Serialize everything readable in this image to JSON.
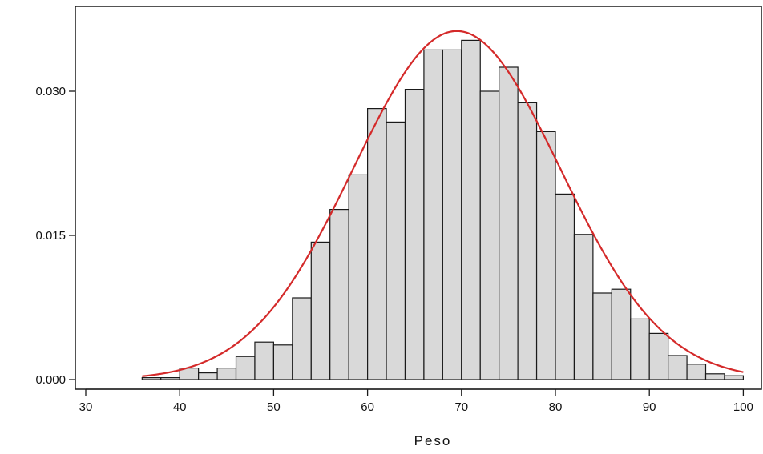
{
  "chart_data": {
    "type": "bar",
    "subtype": "histogram",
    "title": "",
    "xlabel": "Peso",
    "ylabel": "",
    "xlim": [
      30,
      100
    ],
    "ylim": [
      0.0,
      0.0375
    ],
    "x_ticks": [
      "30",
      "40",
      "50",
      "60",
      "70",
      "80",
      "90",
      "100"
    ],
    "y_ticks": [
      "0.000",
      "0.015",
      "0.030"
    ],
    "bin_width": 2,
    "bins": [
      {
        "from": 36,
        "to": 38,
        "value": 0.0002
      },
      {
        "from": 38,
        "to": 40,
        "value": 0.0002
      },
      {
        "from": 40,
        "to": 42,
        "value": 0.0012
      },
      {
        "from": 42,
        "to": 44,
        "value": 0.0007
      },
      {
        "from": 44,
        "to": 46,
        "value": 0.0012
      },
      {
        "from": 46,
        "to": 48,
        "value": 0.0024
      },
      {
        "from": 48,
        "to": 50,
        "value": 0.0039
      },
      {
        "from": 50,
        "to": 52,
        "value": 0.0036
      },
      {
        "from": 52,
        "to": 54,
        "value": 0.0085
      },
      {
        "from": 54,
        "to": 56,
        "value": 0.0143
      },
      {
        "from": 56,
        "to": 58,
        "value": 0.0177
      },
      {
        "from": 58,
        "to": 60,
        "value": 0.0213
      },
      {
        "from": 60,
        "to": 62,
        "value": 0.0282
      },
      {
        "from": 62,
        "to": 64,
        "value": 0.0268
      },
      {
        "from": 64,
        "to": 66,
        "value": 0.0302
      },
      {
        "from": 66,
        "to": 68,
        "value": 0.0343
      },
      {
        "from": 68,
        "to": 70,
        "value": 0.0343
      },
      {
        "from": 70,
        "to": 72,
        "value": 0.0353
      },
      {
        "from": 72,
        "to": 74,
        "value": 0.03
      },
      {
        "from": 74,
        "to": 76,
        "value": 0.0325
      },
      {
        "from": 76,
        "to": 78,
        "value": 0.0288
      },
      {
        "from": 78,
        "to": 80,
        "value": 0.0258
      },
      {
        "from": 80,
        "to": 82,
        "value": 0.0193
      },
      {
        "from": 82,
        "to": 84,
        "value": 0.0151
      },
      {
        "from": 84,
        "to": 86,
        "value": 0.009
      },
      {
        "from": 86,
        "to": 88,
        "value": 0.0094
      },
      {
        "from": 88,
        "to": 90,
        "value": 0.0063
      },
      {
        "from": 90,
        "to": 92,
        "value": 0.0048
      },
      {
        "from": 92,
        "to": 94,
        "value": 0.0025
      },
      {
        "from": 94,
        "to": 96,
        "value": 0.0016
      },
      {
        "from": 96,
        "to": 98,
        "value": 0.0006
      },
      {
        "from": 98,
        "to": 100,
        "value": 0.0004
      }
    ],
    "density_curve": {
      "type": "normal",
      "mean": 69.5,
      "sd": 11.0,
      "x_range": [
        36,
        100
      ]
    },
    "grid": false,
    "legend": "none",
    "colors": {
      "bar_fill": "#d9d9d9",
      "bar_edge": "#1a1a1a",
      "curve": "#d42a2a",
      "axis": "#1a1a1a"
    }
  }
}
